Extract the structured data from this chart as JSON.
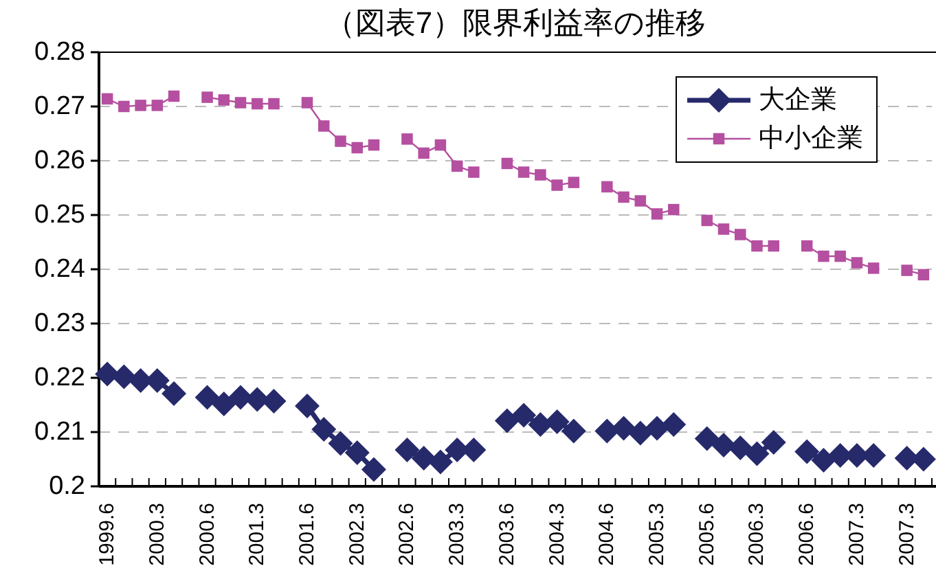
{
  "chart_data": {
    "type": "line",
    "title": "（図表7）限界利益率の推移",
    "categories": [
      "1999.6",
      null,
      null,
      "2000.3",
      null,
      null,
      "2000.6",
      null,
      null,
      "2001.3",
      null,
      null,
      "2001.6",
      null,
      null,
      "2002.3",
      null,
      null,
      "2002.6",
      null,
      null,
      "2003.3",
      null,
      null,
      "2003.6",
      null,
      null,
      "2004.3",
      null,
      null,
      "2004.6",
      null,
      null,
      "2005.3",
      null,
      null,
      "2005.6",
      null,
      null,
      "2006.3",
      null,
      null,
      "2006.6",
      null,
      null,
      "2007.3",
      null,
      null,
      "2007.3",
      null
    ],
    "series": [
      {
        "name": "大企業",
        "color": "#262a6b",
        "marker": "diamond",
        "values": [
          0.2207,
          0.2202,
          0.2195,
          0.2195,
          0.2171,
          null,
          0.2164,
          0.2152,
          0.2164,
          0.216,
          0.2157,
          null,
          0.2148,
          0.2105,
          0.2079,
          0.2062,
          0.2031,
          null,
          0.2067,
          0.2052,
          0.2045,
          0.2067,
          0.2067,
          null,
          0.2121,
          0.2131,
          0.2114,
          0.2119,
          0.2102,
          null,
          0.2102,
          0.2107,
          0.2098,
          0.2107,
          0.2114,
          null,
          0.2088,
          0.2076,
          0.2071,
          0.206,
          0.2081,
          null,
          0.2064,
          0.2048,
          0.2057,
          0.2057,
          0.2057,
          null,
          0.2052,
          0.205
        ]
      },
      {
        "name": "中小企業",
        "color": "#b54fa0",
        "marker": "square",
        "values": [
          0.2714,
          0.27,
          0.2702,
          0.2702,
          0.2719,
          null,
          0.2717,
          0.2712,
          0.2707,
          0.2705,
          0.2705,
          null,
          0.2707,
          0.2664,
          0.2636,
          0.2624,
          0.2629,
          null,
          0.264,
          0.2614,
          0.2629,
          0.259,
          0.2579,
          null,
          0.2595,
          0.2579,
          0.2574,
          0.2555,
          0.256,
          null,
          0.2552,
          0.2533,
          0.2526,
          0.2502,
          0.251,
          null,
          0.249,
          0.2474,
          0.2464,
          0.2443,
          0.2443,
          null,
          0.2443,
          0.2424,
          0.2424,
          0.2412,
          0.2402,
          null,
          0.2398,
          0.239
        ]
      }
    ],
    "ylim": [
      0.2,
      0.28
    ],
    "yticks": [
      0.2,
      0.21,
      0.22,
      0.23,
      0.24,
      0.25,
      0.26,
      0.27,
      0.28
    ],
    "grid": "y",
    "legend": "top right"
  }
}
